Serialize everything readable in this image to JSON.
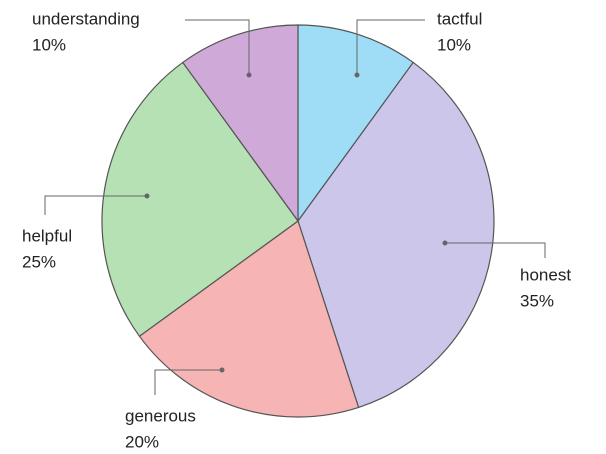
{
  "chart_data": {
    "type": "pie",
    "categories": [
      "tactful",
      "honest",
      "generous",
      "helpful",
      "understanding"
    ],
    "values": [
      10,
      35,
      20,
      25,
      10
    ],
    "value_labels": [
      "10%",
      "35%",
      "20%",
      "25%",
      "10%"
    ],
    "colors": [
      "#9fdcf6",
      "#cbc6ea",
      "#f6b4b4",
      "#b5e1b4",
      "#cfaad9"
    ]
  }
}
